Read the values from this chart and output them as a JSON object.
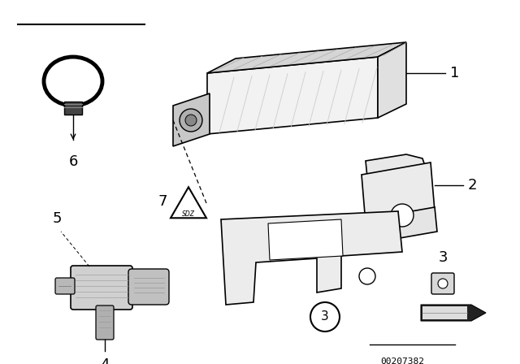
{
  "bg_color": "#ffffff",
  "line_color": "#000000",
  "fig_width": 6.4,
  "fig_height": 4.48,
  "dpi": 100,
  "part_number": "00207382"
}
